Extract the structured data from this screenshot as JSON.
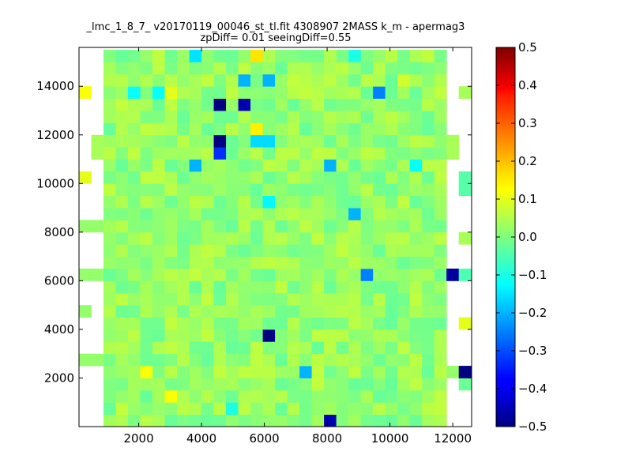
{
  "chart_data": {
    "type": "heatmap",
    "title_line1": "_lmc_1_8_7_ v20170119_00046_st_tl.fit 4308907 2MASS k_m - apermag3",
    "title_line2": "zpDiff= 0.01 seeingDiff=0.55",
    "xlim": [
      100,
      12600
    ],
    "ylim": [
      0,
      15600
    ],
    "xticks": [
      2000,
      4000,
      6000,
      8000,
      10000,
      12000
    ],
    "yticks": [
      2000,
      4000,
      6000,
      8000,
      10000,
      12000,
      14000
    ],
    "grid": false,
    "colormap": "jet",
    "colorbar": {
      "range": [
        -0.5,
        0.5
      ],
      "ticks": [
        "0.5",
        "0.4",
        "0.3",
        "0.2",
        "0.1",
        "0.0",
        "−0.1",
        "−0.2",
        "−0.3",
        "−0.4",
        "−0.5"
      ]
    },
    "nx": 32,
    "ny": 31,
    "cell_x0": 100,
    "cell_dx": 390,
    "cell_y0": 0,
    "cell_dy": 500,
    "base_value": 0.02,
    "value_spread": 0.045,
    "white_columns_left": 2,
    "white_columns_right": 2,
    "edge_cells": [
      {
        "col": 0,
        "row": 5,
        "value": 0.02
      },
      {
        "col": 0,
        "row": 9,
        "value": 0.02
      },
      {
        "col": 0,
        "row": 12,
        "value": 0.02
      },
      {
        "col": 0,
        "row": 16,
        "value": 0.02
      },
      {
        "col": 0,
        "row": 20,
        "value": 0.1
      },
      {
        "col": 0,
        "row": 27,
        "value": 0.12
      },
      {
        "col": 1,
        "row": 5,
        "value": 0.02
      },
      {
        "col": 1,
        "row": 12,
        "value": 0.02
      },
      {
        "col": 1,
        "row": 16,
        "value": 0.02
      },
      {
        "col": 1,
        "row": 23,
        "value": 0.04
      },
      {
        "col": 1,
        "row": 22,
        "value": 0.04
      },
      {
        "col": 30,
        "row": 23,
        "value": 0.04
      },
      {
        "col": 30,
        "row": 22,
        "value": 0.04
      },
      {
        "col": 30,
        "row": 12,
        "value": -0.47
      },
      {
        "col": 30,
        "row": 4,
        "value": 0.02
      },
      {
        "col": 31,
        "row": 27,
        "value": 0.04
      },
      {
        "col": 31,
        "row": 20,
        "value": -0.04
      },
      {
        "col": 31,
        "row": 19,
        "value": -0.04
      },
      {
        "col": 31,
        "row": 15,
        "value": 0.04
      },
      {
        "col": 31,
        "row": 12,
        "value": -0.05
      },
      {
        "col": 31,
        "row": 8,
        "value": 0.1
      },
      {
        "col": 31,
        "row": 4,
        "value": -0.5
      },
      {
        "col": 31,
        "row": 3,
        "value": -0.02
      }
    ],
    "outliers": [
      {
        "col": 11,
        "row": 26,
        "value": -0.5
      },
      {
        "col": 13,
        "row": 26,
        "value": -0.45
      },
      {
        "col": 11,
        "row": 23,
        "value": -0.5
      },
      {
        "col": 11,
        "row": 22,
        "value": -0.33
      },
      {
        "col": 15,
        "row": 7,
        "value": -0.5
      },
      {
        "col": 20,
        "row": 0,
        "value": -0.45
      },
      {
        "col": 14,
        "row": 23,
        "value": -0.16
      },
      {
        "col": 15,
        "row": 23,
        "value": -0.16
      },
      {
        "col": 9,
        "row": 21,
        "value": -0.2
      },
      {
        "col": 20,
        "row": 21,
        "value": -0.2
      },
      {
        "col": 13,
        "row": 28,
        "value": -0.2
      },
      {
        "col": 15,
        "row": 28,
        "value": -0.2
      },
      {
        "col": 4,
        "row": 27,
        "value": -0.12
      },
      {
        "col": 6,
        "row": 27,
        "value": -0.12
      },
      {
        "col": 24,
        "row": 27,
        "value": -0.25
      },
      {
        "col": 22,
        "row": 30,
        "value": -0.1
      },
      {
        "col": 30,
        "row": 1,
        "value": -0.15
      },
      {
        "col": 23,
        "row": 12,
        "value": -0.25
      },
      {
        "col": 22,
        "row": 17,
        "value": -0.2
      },
      {
        "col": 18,
        "row": 4,
        "value": -0.2
      },
      {
        "col": 15,
        "row": 18,
        "value": -0.13
      },
      {
        "col": 27,
        "row": 21,
        "value": -0.12
      },
      {
        "col": 9,
        "row": 30,
        "value": -0.15
      },
      {
        "col": 14,
        "row": 30,
        "value": 0.15
      },
      {
        "col": 14,
        "row": 24,
        "value": 0.14
      },
      {
        "col": 7,
        "row": 27,
        "value": 0.1
      },
      {
        "col": 26,
        "row": 28,
        "value": 0.08
      },
      {
        "col": 0,
        "row": 8,
        "value": 0.14
      },
      {
        "col": 5,
        "row": 4,
        "value": 0.12
      },
      {
        "col": 7,
        "row": 2,
        "value": 0.12
      },
      {
        "col": 12,
        "row": 1,
        "value": -0.1
      }
    ]
  }
}
